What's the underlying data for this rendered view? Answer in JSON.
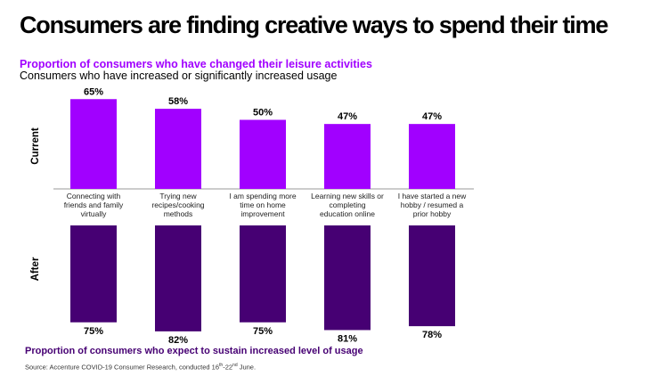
{
  "title": "Consumers are finding creative ways to spend their time",
  "subtitle": "Proportion of consumers who have changed their leisure activities",
  "subtitle2": "Consumers who have increased or significantly increased usage",
  "bottom_label": "Proportion of consumers who expect to sustain increased level of usage",
  "source": {
    "prefix": "Source: Accenture COVID-19 Consumer Research, conducted 16",
    "sup1": "th",
    "mid": "-22",
    "sup2": "nd",
    "suffix": " June."
  },
  "colors": {
    "current": "#a100ff",
    "after": "#460073",
    "subtitle": "#a100ff"
  },
  "chart_data": {
    "type": "bar",
    "categories": [
      [
        "Connecting with",
        "friends and family",
        "virtually"
      ],
      [
        "Trying new",
        "recipes/cooking",
        "methods"
      ],
      [
        "I am spending more",
        "time on home",
        "improvement"
      ],
      [
        "Learning new skills or",
        "completing",
        "education online"
      ],
      [
        "I have started a new",
        "hobby / resumed a",
        "prior hobby"
      ]
    ],
    "series": [
      {
        "name": "Current",
        "values": [
          65,
          58,
          50,
          47,
          47
        ],
        "labels": [
          "65%",
          "58%",
          "50%",
          "47%",
          "47%"
        ]
      },
      {
        "name": "After",
        "values": [
          75,
          82,
          75,
          81,
          78
        ],
        "labels": [
          "75%",
          "82%",
          "75%",
          "81%",
          "78%"
        ]
      }
    ],
    "ylim": [
      0,
      100
    ],
    "grid": false,
    "legend": "none"
  }
}
